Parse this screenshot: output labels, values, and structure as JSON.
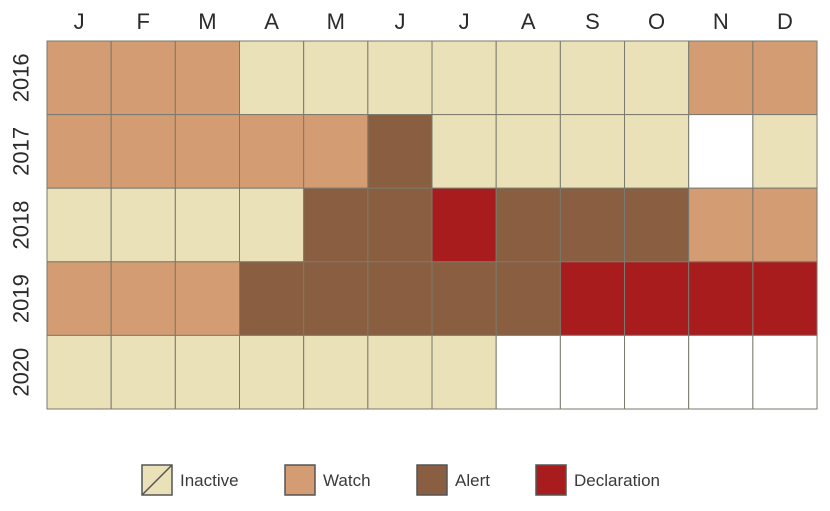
{
  "chart_data": {
    "type": "heatmap",
    "title": "",
    "months": [
      "J",
      "F",
      "M",
      "A",
      "M",
      "J",
      "J",
      "A",
      "S",
      "O",
      "N",
      "D"
    ],
    "years": [
      "2016",
      "2017",
      "2018",
      "2019",
      "2020"
    ],
    "status_grid": [
      [
        "Watch",
        "Watch",
        "Watch",
        "Inactive",
        "Inactive",
        "Inactive",
        "Inactive",
        "Inactive",
        "Inactive",
        "Inactive",
        "Watch",
        "Watch"
      ],
      [
        "Watch",
        "Watch",
        "Watch",
        "Watch",
        "Watch",
        "Alert",
        "Inactive",
        "Inactive",
        "Inactive",
        "Inactive",
        "",
        "Inactive"
      ],
      [
        "Inactive",
        "Inactive",
        "Inactive",
        "Inactive",
        "Alert",
        "Alert",
        "Declaration",
        "Alert",
        "Alert",
        "Alert",
        "Watch",
        "Watch"
      ],
      [
        "Watch",
        "Watch",
        "Watch",
        "Alert",
        "Alert",
        "Alert",
        "Alert",
        "Alert",
        "Declaration",
        "Declaration",
        "Declaration",
        "Declaration"
      ],
      [
        "Inactive",
        "Inactive",
        "Inactive",
        "Inactive",
        "Inactive",
        "Inactive",
        "Inactive",
        "",
        "",
        "",
        "",
        ""
      ]
    ],
    "legend": [
      {
        "label": "Inactive",
        "color": "#ebe1b9",
        "diagonal": true
      },
      {
        "label": "Watch",
        "color": "#d49c72"
      },
      {
        "label": "Alert",
        "color": "#8a5e41"
      },
      {
        "label": "Declaration",
        "color": "#a81c1e"
      }
    ],
    "empty_color": "#ffffff",
    "grid_line_color": "#7a7a6e",
    "legend_placement": "bottom-center"
  }
}
